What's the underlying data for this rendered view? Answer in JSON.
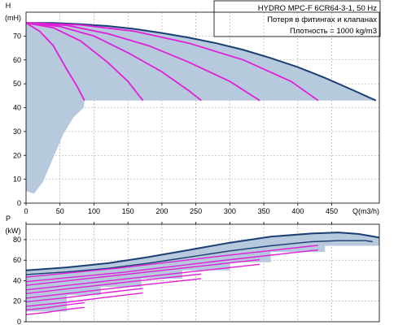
{
  "info_box": {
    "line1": "HYDRO MPC-F 6CR64-3-1, 50 Hz",
    "line2": "Потеря в фитингах и клапанах",
    "line3": "Плотность = 1000 kg/m3"
  },
  "colors": {
    "envelope_fill": "#b7c9dc",
    "envelope_line": "#1b3f73",
    "curve": "#e020d8",
    "grid": "#a0a0a0",
    "axis": "#000000"
  },
  "chart_data": [
    {
      "type": "area",
      "name": "head",
      "ylabel_top": "H",
      "ylabel_unit": "(mH)",
      "xlabel": "Q(m3/h)",
      "xlim": [
        0,
        520
      ],
      "ylim": [
        0,
        80
      ],
      "xticks": [
        0,
        50,
        100,
        150,
        200,
        250,
        300,
        350,
        400,
        450
      ],
      "yticks": [
        0,
        10,
        20,
        30,
        40,
        50,
        60,
        70
      ],
      "grid": true,
      "max_curve": {
        "x": [
          0,
          40,
          80,
          120,
          160,
          200,
          240,
          280,
          320,
          360,
          400,
          440,
          480,
          515
        ],
        "y": [
          75.5,
          75.5,
          75.0,
          74.2,
          73.0,
          71.3,
          69.3,
          67.0,
          64.2,
          60.8,
          57.0,
          52.5,
          47.5,
          43
        ]
      },
      "min_curve": {
        "x": [
          0,
          12,
          25,
          40,
          55,
          70,
          85
        ],
        "y": [
          5,
          4,
          9,
          19,
          29,
          36,
          40
        ]
      },
      "pump_curves": [
        {
          "x": [
            0,
            20,
            40,
            60,
            75,
            86
          ],
          "y": [
            75.5,
            72,
            66,
            56,
            49,
            43
          ]
        },
        {
          "x": [
            0,
            40,
            80,
            120,
            150,
            172
          ],
          "y": [
            75.5,
            73.5,
            68,
            59,
            51,
            43
          ]
        },
        {
          "x": [
            0,
            50,
            100,
            150,
            200,
            240,
            258
          ],
          "y": [
            75.5,
            74,
            70,
            63,
            55,
            47,
            43
          ]
        },
        {
          "x": [
            0,
            60,
            120,
            180,
            240,
            300,
            344
          ],
          "y": [
            75.5,
            74.5,
            71,
            66,
            59,
            51,
            43
          ]
        },
        {
          "x": [
            0,
            80,
            160,
            240,
            320,
            390,
            430
          ],
          "y": [
            75.5,
            74.7,
            72,
            67,
            60,
            51,
            43
          ]
        }
      ]
    },
    {
      "type": "area",
      "name": "power",
      "ylabel_top": "P",
      "ylabel_unit": "(kW)",
      "xlim": [
        0,
        520
      ],
      "ylim": [
        0,
        95
      ],
      "yticks": [
        0,
        20,
        40,
        60,
        80
      ],
      "grid": true,
      "max_curve": {
        "x": [
          0,
          60,
          120,
          180,
          240,
          300,
          360,
          420,
          460,
          490,
          520
        ],
        "y": [
          50,
          53,
          57,
          63,
          70,
          77,
          83,
          86,
          87,
          85.5,
          82
        ]
      },
      "lower_envelope": {
        "x": [
          0,
          60,
          120,
          180,
          240,
          300,
          360,
          420,
          460,
          500,
          510
        ],
        "y": [
          46,
          48.5,
          52,
          57,
          63,
          69,
          74,
          78,
          79,
          79,
          78
        ]
      },
      "pump_curves": [
        {
          "x": [
            0,
            30,
            60,
            86
          ],
          "y": [
            7,
            9,
            12,
            14
          ]
        },
        {
          "x": [
            0,
            60,
            120,
            172
          ],
          "y": [
            15,
            19,
            24,
            28
          ]
        },
        {
          "x": [
            0,
            80,
            160,
            258
          ],
          "y": [
            23,
            29,
            35,
            42
          ]
        },
        {
          "x": [
            0,
            110,
            220,
            344
          ],
          "y": [
            31,
            39,
            47,
            56
          ]
        },
        {
          "x": [
            0,
            140,
            280,
            430
          ],
          "y": [
            39,
            48,
            59,
            70
          ]
        }
      ]
    }
  ]
}
